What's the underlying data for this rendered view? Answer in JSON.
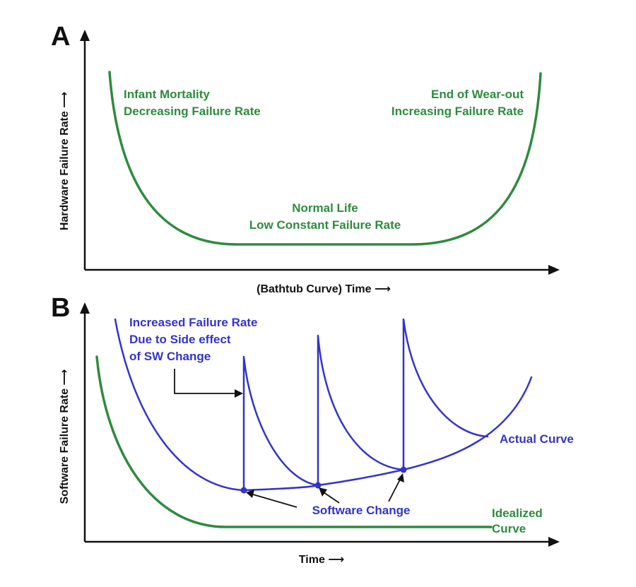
{
  "panel_a": {
    "letter": "A",
    "y_axis_label": "Hardware Failure Rate ⟶",
    "x_axis_label": "(Bathtub Curve) Time ⟶",
    "infant_mortality": {
      "line1": "Infant Mortality",
      "line2": "Decreasing Failure Rate"
    },
    "wear_out": {
      "line1": "End of Wear-out",
      "line2": "Increasing Failure Rate"
    },
    "normal_life": {
      "line1": "Normal Life",
      "line2": "Low Constant Failure Rate"
    }
  },
  "panel_b": {
    "letter": "B",
    "y_axis_label": "Software Failure Rate ⟶",
    "x_axis_label": "Time ⟶",
    "increased_failure": {
      "line1": "Increased Failure Rate",
      "line2": "Due to Side effect",
      "line3": "of SW Change"
    },
    "actual_curve_label": "Actual Curve",
    "software_change_label": "Software Change",
    "idealized_curve": {
      "line1": "Idealized",
      "line2": "Curve"
    }
  },
  "colors": {
    "hardware_curve": "#2e8b3e",
    "actual_curve": "#3333cc",
    "idealized_curve": "#2e8b3e",
    "axes": "#111111"
  }
}
